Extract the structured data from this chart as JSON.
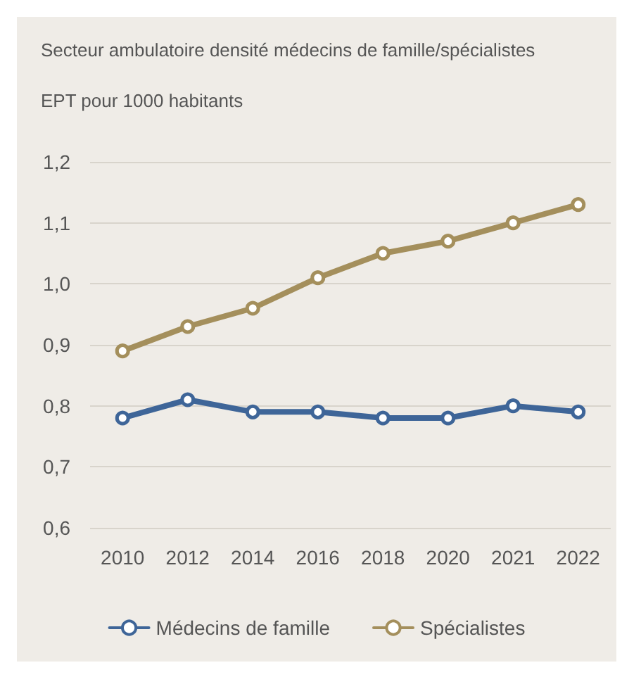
{
  "chart_data": {
    "type": "line",
    "title": "Secteur ambulatoire densité médecins de famille/spécialistes",
    "ylabel": "EPT pour 1000 habitants",
    "categories": [
      "2010",
      "2012",
      "2014",
      "2016",
      "2018",
      "2020",
      "2021",
      "2022"
    ],
    "series": [
      {
        "name": "Médecins de famille",
        "color": "#3e6598",
        "values": [
          0.78,
          0.81,
          0.79,
          0.79,
          0.78,
          0.78,
          0.8,
          0.79
        ]
      },
      {
        "name": "Spécialistes",
        "color": "#a48f5c",
        "values": [
          0.89,
          0.93,
          0.96,
          1.01,
          1.05,
          1.07,
          1.1,
          1.13
        ]
      }
    ],
    "ylim": [
      0.6,
      1.2
    ],
    "yticks": [
      {
        "value": 0.6,
        "label": "0,6"
      },
      {
        "value": 0.7,
        "label": "0,7"
      },
      {
        "value": 0.8,
        "label": "0,8"
      },
      {
        "value": 0.9,
        "label": "0,9"
      },
      {
        "value": 1.0,
        "label": "1,0"
      },
      {
        "value": 1.1,
        "label": "1,1"
      },
      {
        "value": 1.2,
        "label": "1,2"
      }
    ],
    "grid": "y",
    "legend": "bottom",
    "marker": "circle",
    "line_style": "solid"
  }
}
